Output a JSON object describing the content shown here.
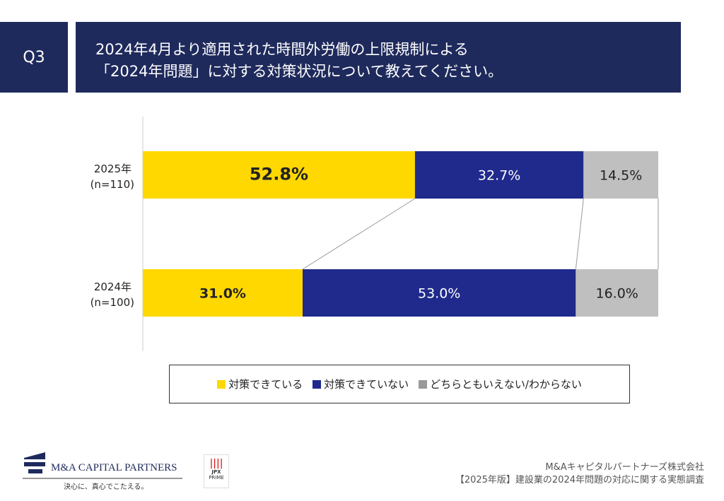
{
  "header": {
    "q_label": "Q3",
    "title_line1": "2024年4月より適用された時間外労働の上限規制による",
    "title_line2": "「2024年問題」に対する対策状況について教えてください。"
  },
  "chart_data": {
    "type": "bar",
    "orientation": "horizontal",
    "stacked": true,
    "percent": true,
    "categories": [
      {
        "label1": "2025年",
        "label2": "(n=110)"
      },
      {
        "label1": "2024年",
        "label2": "(n=100)"
      }
    ],
    "series": [
      {
        "name": "対策できている",
        "color": "#ffd800",
        "values": [
          52.8,
          31.0
        ],
        "labels": [
          "52.8%",
          "31.0%"
        ]
      },
      {
        "name": "対策できていない",
        "color": "#1f2a8c",
        "values": [
          32.7,
          53.0
        ],
        "labels": [
          "32.7%",
          "53.0%"
        ]
      },
      {
        "name": "どちらともいえない/わからない",
        "color": "#bfbfbf",
        "values": [
          14.5,
          16.0
        ],
        "labels": [
          "14.5%",
          "16.0%"
        ]
      }
    ],
    "xlim": [
      0,
      100
    ],
    "legend": "bottom",
    "grid": false
  },
  "footer": {
    "logo_name": "M&A CAPITAL PARTNERS",
    "logo_tagline": "決心に、真心でこたえる。",
    "jpx": "JPX",
    "jpx_sub": "PRIME",
    "company": "M&Aキャピタルパートナーズ株式会社",
    "report": "【2025年版】建設業の2024年問題の対応に関する実態調査"
  }
}
